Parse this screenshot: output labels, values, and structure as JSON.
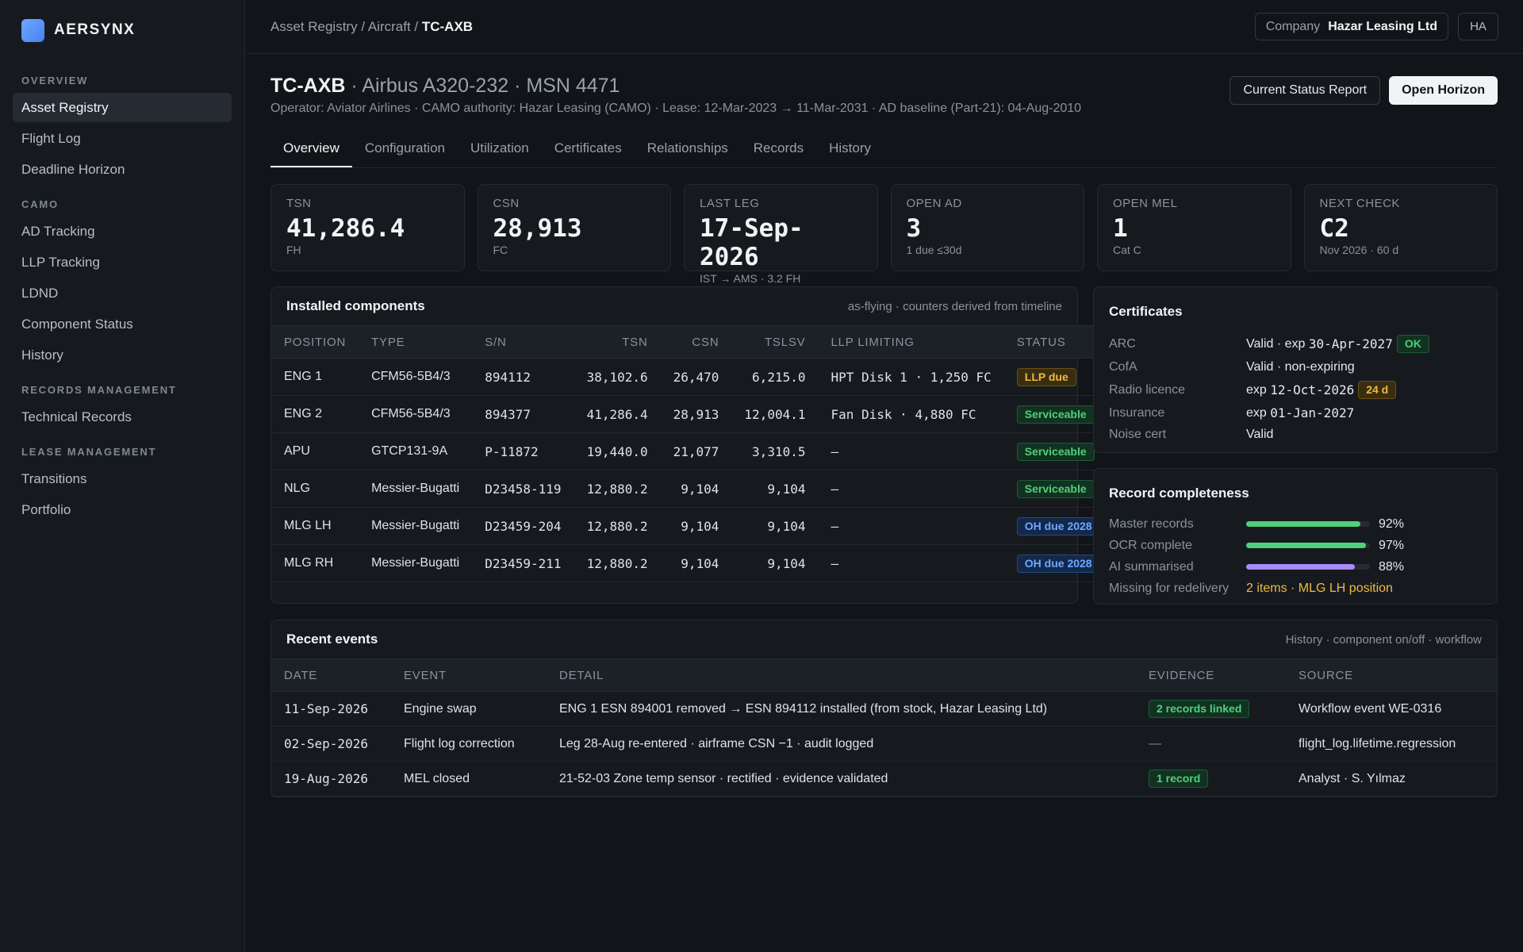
{
  "brand": {
    "name": "AERSYNX",
    "logo_color": "#5b93f5"
  },
  "sidebar": {
    "sections": [
      {
        "label": "OVERVIEW",
        "items": [
          "Asset Registry",
          "Flight Log",
          "Deadline Horizon"
        ]
      },
      {
        "label": "CAMO",
        "items": [
          "AD Tracking",
          "LLP Tracking",
          "LDND",
          "Component Status",
          "History"
        ]
      },
      {
        "label": "RECORDS MANAGEMENT",
        "items": [
          "Technical Records"
        ]
      },
      {
        "label": "LEASE MANAGEMENT",
        "items": [
          "Transitions",
          "Portfolio"
        ]
      }
    ],
    "active_item": "Asset Registry"
  },
  "topbar": {
    "breadcrumb": {
      "part1": "Asset Registry",
      "sep1": " / ",
      "part2": "Aircraft",
      "sep2": " / ",
      "current": "TC-AXB"
    },
    "company_label": "Company",
    "company_value": "Hazar Leasing Ltd",
    "avatar": "HA"
  },
  "header": {
    "reg": "TC-AXB",
    "title_rest": " · Airbus A320-232 · MSN 4471",
    "subline": "Operator: Aviator Airlines · CAMO authority: Hazar Leasing (CAMO) · Lease: 12-Mar-2023 → 11-Mar-2031 · AD baseline (Part-21): 04-Aug-2010",
    "btn_status": "Current Status Report",
    "btn_horizon": "Open Horizon"
  },
  "tabs": [
    "Overview",
    "Configuration",
    "Utilization",
    "Certificates",
    "Relationships",
    "Records",
    "History"
  ],
  "kpis": [
    {
      "label": "TSN",
      "value": "41,286.4",
      "sub": "FH"
    },
    {
      "label": "CSN",
      "value": "28,913",
      "sub": "FC"
    },
    {
      "label": "LAST LEG",
      "value": "17-Sep-2026",
      "sub": "IST → AMS · 3.2 FH"
    },
    {
      "label": "OPEN AD",
      "value": "3",
      "sub": "1 due ≤30d"
    },
    {
      "label": "OPEN MEL",
      "value": "1",
      "sub": "Cat C"
    },
    {
      "label": "NEXT CHECK",
      "value": "C2",
      "sub": "Nov 2026 · 60 d"
    }
  ],
  "components": {
    "title": "Installed components",
    "note": "as-flying · counters derived from timeline",
    "columns": [
      "POSITION",
      "TYPE",
      "S/N",
      "TSN",
      "CSN",
      "TSLSV",
      "LLP LIMITING",
      "STATUS"
    ],
    "rows": [
      {
        "position": "ENG 1",
        "type": "CFM56-5B4/3",
        "sn": "894112",
        "tsn": "38,102.6",
        "csn": "26,470",
        "tslsv": "6,215.0",
        "llp": "HPT Disk 1 · 1,250 FC",
        "status": "LLP due",
        "status_kind": "amber"
      },
      {
        "position": "ENG 2",
        "type": "CFM56-5B4/3",
        "sn": "894377",
        "tsn": "41,286.4",
        "csn": "28,913",
        "tslsv": "12,004.1",
        "llp": "Fan Disk · 4,880 FC",
        "status": "Serviceable",
        "status_kind": "green"
      },
      {
        "position": "APU",
        "type": "GTCP131-9A",
        "sn": "P-11872",
        "tsn": "19,440.0",
        "csn": "21,077",
        "tslsv": "3,310.5",
        "llp": "—",
        "status": "Serviceable",
        "status_kind": "green"
      },
      {
        "position": "NLG",
        "type": "Messier-Bugatti",
        "sn": "D23458-119",
        "tsn": "12,880.2",
        "csn": "9,104",
        "tslsv": "9,104",
        "llp": "—",
        "status": "Serviceable",
        "status_kind": "green"
      },
      {
        "position": "MLG LH",
        "type": "Messier-Bugatti",
        "sn": "D23459-204",
        "tsn": "12,880.2",
        "csn": "9,104",
        "tslsv": "9,104",
        "llp": "—",
        "status": "OH due 2028",
        "status_kind": "blue"
      },
      {
        "position": "MLG RH",
        "type": "Messier-Bugatti",
        "sn": "D23459-211",
        "tsn": "12,880.2",
        "csn": "9,104",
        "tslsv": "9,104",
        "llp": "—",
        "status": "OH due 2028",
        "status_kind": "blue"
      }
    ]
  },
  "certificates": {
    "title": "Certificates",
    "items": [
      {
        "k": "ARC",
        "v_pre": "Valid · exp ",
        "v_mono": "30-Apr-2027",
        "badge": "OK",
        "badge_kind": "green"
      },
      {
        "k": "CofA",
        "v_pre": "Valid · non-expiring",
        "v_mono": "",
        "badge": "",
        "badge_kind": ""
      },
      {
        "k": "Radio licence",
        "v_pre": "exp ",
        "v_mono": "12-Oct-2026",
        "badge": "24 d",
        "badge_kind": "amber"
      },
      {
        "k": "Insurance",
        "v_pre": "exp ",
        "v_mono": "01-Jan-2027",
        "badge": "",
        "badge_kind": ""
      },
      {
        "k": "Noise cert",
        "v_pre": "Valid",
        "v_mono": "",
        "badge": "",
        "badge_kind": ""
      }
    ]
  },
  "record_completeness": {
    "title": "Record completeness",
    "items": [
      {
        "k": "Master records",
        "pct_label": "92%",
        "fraction": 0.92,
        "color": "#4fd07a"
      },
      {
        "k": "OCR complete",
        "pct_label": "97%",
        "fraction": 0.97,
        "color": "#4fd07a"
      },
      {
        "k": "AI summarised",
        "pct_label": "88%",
        "fraction": 0.88,
        "color": "#a78bfa"
      }
    ],
    "missing_label": "Missing for redelivery",
    "missing_value": "2 items · MLG LH position"
  },
  "events": {
    "title": "Recent events",
    "note": "History · component on/off · workflow",
    "columns": [
      "DATE",
      "EVENT",
      "DETAIL",
      "EVIDENCE",
      "SOURCE"
    ],
    "rows": [
      {
        "date": "11-Sep-2026",
        "event": "Engine swap",
        "detail": "ENG 1 ESN 894001 removed → ESN 894112 installed (from stock, Hazar Leasing Ltd)",
        "evidence": "2 records linked",
        "evidence_kind": "green",
        "source": "Workflow event WE-0316"
      },
      {
        "date": "02-Sep-2026",
        "event": "Flight log correction",
        "detail": "Leg 28-Aug re-entered · airframe CSN −1 · audit logged",
        "evidence": "—",
        "evidence_kind": "",
        "source": "flight_log.lifetime.regression"
      },
      {
        "date": "19-Aug-2026",
        "event": "MEL closed",
        "detail": "21-52-03 Zone temp sensor · rectified · evidence validated",
        "evidence": "1 record",
        "evidence_kind": "green",
        "source": "Analyst · S. Yılmaz"
      }
    ]
  }
}
